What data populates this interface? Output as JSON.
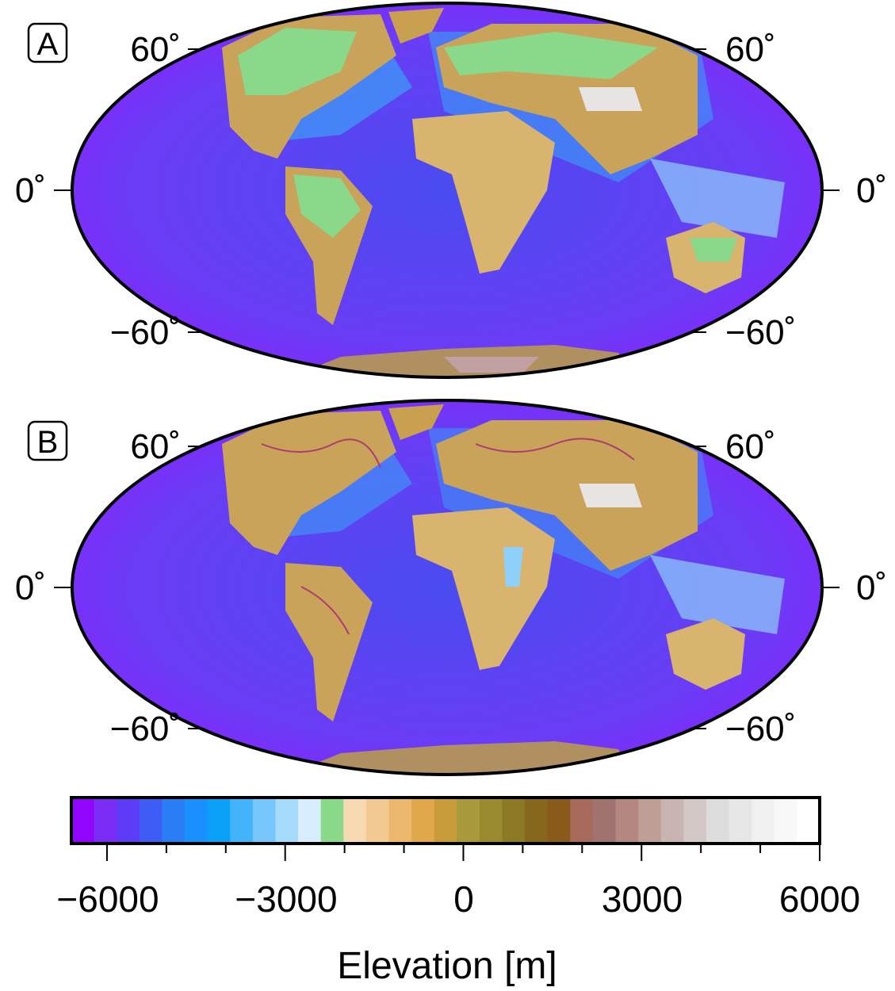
{
  "panels": [
    {
      "letter": "A",
      "lat_labels_left": [
        "60˚",
        "0˚",
        "−60˚"
      ],
      "lat_labels_right": [
        "60˚",
        "0˚",
        "−60˚"
      ]
    },
    {
      "letter": "B",
      "lat_labels_left": [
        "60˚",
        "0˚",
        "−60˚"
      ],
      "lat_labels_right": [
        "60˚",
        "0˚",
        "−60˚"
      ]
    }
  ],
  "colorbar": {
    "title": "Elevation [m]",
    "tick_labels": [
      "−6000",
      "−3000",
      "0",
      "3000",
      "6000"
    ],
    "range": [
      -6600,
      6000
    ],
    "colors": [
      "#9106ff",
      "#7b2cf5",
      "#5d3cf7",
      "#3f5cf5",
      "#2a7df5",
      "#1a90ff",
      "#0aa0f8",
      "#44b4fa",
      "#76c6fb",
      "#a7dbfc",
      "#d8eefe",
      "#8ad88a",
      "#f7d9b4",
      "#f2c991",
      "#ecb86d",
      "#e0a84a",
      "#c99c3a",
      "#a89a3a",
      "#9a8a30",
      "#8c7a26",
      "#87661e",
      "#8a5a1c",
      "#a86a5a",
      "#a07270",
      "#b48880",
      "#c09e98",
      "#c8b4b0",
      "#d2c8c6",
      "#dcdcdc",
      "#e6e6e6",
      "#f0f0f0",
      "#f8f8f8",
      "#ffffff"
    ]
  }
}
